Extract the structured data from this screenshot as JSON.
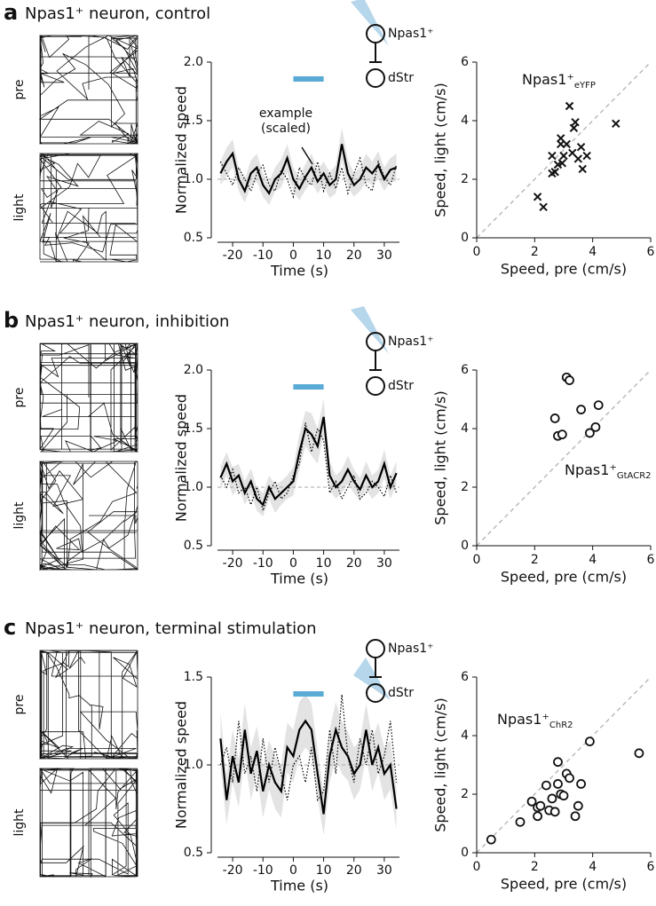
{
  "panels": [
    {
      "letter": "a",
      "title": "Npas1⁺ neuron, control",
      "tracks": [
        "pre",
        "light"
      ],
      "circuit": [
        "Npas1⁺",
        "dStr"
      ]
    },
    {
      "letter": "b",
      "title": "Npas1⁺ neuron, inhibition",
      "tracks": [
        "pre",
        "light"
      ],
      "circuit": [
        "Npas1⁺",
        "dStr"
      ]
    },
    {
      "letter": "c",
      "title": "Npas1⁺ neuron, terminal stimulation",
      "tracks": [
        "pre",
        "light"
      ],
      "circuit": [
        "Npas1⁺",
        "dStr"
      ]
    }
  ],
  "chart_data": [
    {
      "type": "line",
      "xlabel": "Time (s)",
      "ylabel": "Normalized speed",
      "x": [
        -24,
        -22,
        -20,
        -18,
        -16,
        -14,
        -12,
        -10,
        -8,
        -6,
        -4,
        -2,
        0,
        2,
        4,
        6,
        8,
        10,
        12,
        14,
        16,
        18,
        20,
        22,
        24,
        26,
        28,
        30,
        32,
        34
      ],
      "series": [
        {
          "color": "#000000",
          "style": "solid",
          "values": [
            1.05,
            1.15,
            1.22,
            1.0,
            0.9,
            1.05,
            1.1,
            0.95,
            0.88,
            1.0,
            1.05,
            1.18,
            1.0,
            0.92,
            1.02,
            1.1,
            0.98,
            1.05,
            0.95,
            1.0,
            1.3,
            1.05,
            0.95,
            1.0,
            1.1,
            1.05,
            1.12,
            1.0,
            1.08,
            1.1
          ],
          "errors": [
            0.1,
            0.12,
            0.12,
            0.1,
            0.1,
            0.11,
            0.12,
            0.1,
            0.1,
            0.1,
            0.12,
            0.12,
            0.1,
            0.1,
            0.11,
            0.12,
            0.1,
            0.1,
            0.11,
            0.12,
            0.14,
            0.12,
            0.1,
            0.1,
            0.12,
            0.1,
            0.12,
            0.1,
            0.1,
            0.12
          ]
        },
        {
          "color": "#000000",
          "style": "dotted",
          "values": [
            1.15,
            1.05,
            0.95,
            1.1,
            1.0,
            0.9,
            1.05,
            1.12,
            0.95,
            0.9,
            1.08,
            1.0,
            0.85,
            1.1,
            1.0,
            0.95,
            1.15,
            0.9,
            1.05,
            0.92,
            1.1,
            0.88,
            1.05,
            1.18,
            0.95,
            0.9,
            1.15,
            1.02,
            0.95,
            1.12
          ]
        }
      ],
      "band_color": "#e3e3e3",
      "reference_line": 1,
      "highlight": {
        "range": [
          0,
          10
        ],
        "color": "#5aaad6"
      },
      "annotation": [
        "example",
        "(scaled)"
      ],
      "xlim": [
        -25,
        35
      ],
      "ylim": [
        0.5,
        2.0
      ],
      "xticks": [
        -20,
        -10,
        0,
        10,
        20,
        30
      ],
      "yticks": [
        0.5,
        {
          "value": 1,
          "label": "1.0"
        },
        1.5,
        {
          "value": 2,
          "label": "2.0"
        }
      ]
    },
    {
      "type": "scatter",
      "xlabel": "Speed, pre (cm/s)",
      "ylabel": "Speed, light (cm/s)",
      "marker": "x",
      "identity_line": true,
      "annotation": {
        "text": "Npas1⁺",
        "subscript": "eYFP"
      },
      "x": [
        2.1,
        2.3,
        2.6,
        2.6,
        2.7,
        2.8,
        2.9,
        2.9,
        3.0,
        2.95,
        3.1,
        3.2,
        3.3,
        3.35,
        3.4,
        3.5,
        3.6,
        3.65,
        3.8,
        4.8
      ],
      "values": [
        1.4,
        1.05,
        2.2,
        2.8,
        2.25,
        2.5,
        3.2,
        3.4,
        2.8,
        2.55,
        3.2,
        4.5,
        2.9,
        3.75,
        3.95,
        2.7,
        3.1,
        2.35,
        2.8,
        3.9
      ],
      "xlim": [
        0,
        6
      ],
      "ylim": [
        0,
        6
      ],
      "xticks": [
        0,
        2,
        4,
        6
      ],
      "yticks": [
        0,
        2,
        4,
        6
      ]
    },
    {
      "type": "line",
      "xlabel": "Time (s)",
      "ylabel": "Normalized speed",
      "x": [
        -24,
        -22,
        -20,
        -18,
        -16,
        -14,
        -12,
        -10,
        -8,
        -6,
        -4,
        -2,
        0,
        2,
        4,
        6,
        8,
        10,
        12,
        14,
        16,
        18,
        20,
        22,
        24,
        26,
        28,
        30,
        32,
        34
      ],
      "series": [
        {
          "color": "#000000",
          "style": "solid",
          "values": [
            1.08,
            1.2,
            1.05,
            1.1,
            0.95,
            1.05,
            0.9,
            0.85,
            1.0,
            0.9,
            0.95,
            1.0,
            1.05,
            1.3,
            1.5,
            1.45,
            1.35,
            1.6,
            1.1,
            1.0,
            1.05,
            1.15,
            1.05,
            0.98,
            1.1,
            1.0,
            1.05,
            1.2,
            1.0,
            1.12
          ],
          "errors": [
            0.1,
            0.1,
            0.12,
            0.1,
            0.1,
            0.11,
            0.1,
            0.1,
            0.1,
            0.12,
            0.1,
            0.1,
            0.12,
            0.15,
            0.15,
            0.18,
            0.15,
            0.15,
            0.12,
            0.1,
            0.1,
            0.12,
            0.1,
            0.1,
            0.12,
            0.1,
            0.1,
            0.12,
            0.1,
            0.1
          ]
        },
        {
          "color": "#000000",
          "style": "dotted",
          "values": [
            1.1,
            1.0,
            1.15,
            0.95,
            1.0,
            0.85,
            1.0,
            0.8,
            0.95,
            1.05,
            0.9,
            0.95,
            1.1,
            1.2,
            1.55,
            1.3,
            1.5,
            1.4,
            0.95,
            1.05,
            0.9,
            1.0,
            1.1,
            0.9,
            0.95,
            1.05,
            1.0,
            0.92,
            1.1,
            0.95
          ]
        }
      ],
      "band_color": "#e3e3e3",
      "reference_line": 1,
      "highlight": {
        "range": [
          0,
          10
        ],
        "color": "#5aaad6"
      },
      "xlim": [
        -25,
        35
      ],
      "ylim": [
        0.5,
        2.0
      ],
      "xticks": [
        -20,
        -10,
        0,
        10,
        20,
        30
      ],
      "yticks": [
        0.5,
        {
          "value": 1,
          "label": "1.0"
        },
        1.5,
        {
          "value": 2,
          "label": "2.0"
        }
      ]
    },
    {
      "type": "scatter",
      "xlabel": "Speed, pre (cm/s)",
      "ylabel": "Speed, light (cm/s)",
      "marker": "circle",
      "identity_line": true,
      "annotation": {
        "text": "Npas1⁺",
        "subscript": "GtACR2"
      },
      "x": [
        2.7,
        2.8,
        2.95,
        3.1,
        3.2,
        3.6,
        3.9,
        4.1,
        4.2
      ],
      "values": [
        4.35,
        3.75,
        3.8,
        5.75,
        5.65,
        4.65,
        3.85,
        4.05,
        4.8
      ],
      "xlim": [
        0,
        6
      ],
      "ylim": [
        0,
        6
      ],
      "xticks": [
        0,
        2,
        4,
        6
      ],
      "yticks": [
        0,
        2,
        4,
        6
      ]
    },
    {
      "type": "line",
      "xlabel": "Time (s)",
      "ylabel": "Normalized speed",
      "x": [
        -24,
        -22,
        -20,
        -18,
        -16,
        -14,
        -12,
        -10,
        -8,
        -6,
        -4,
        -2,
        0,
        2,
        4,
        6,
        8,
        10,
        12,
        14,
        16,
        18,
        20,
        22,
        24,
        26,
        28,
        30,
        32,
        34
      ],
      "series": [
        {
          "color": "#000000",
          "style": "solid",
          "values": [
            1.15,
            0.8,
            1.05,
            0.9,
            1.2,
            0.95,
            1.08,
            0.85,
            1.0,
            0.9,
            0.85,
            1.1,
            1.05,
            1.2,
            1.25,
            1.2,
            0.95,
            0.72,
            1.05,
            1.2,
            1.1,
            1.05,
            0.95,
            1.0,
            1.2,
            1.0,
            1.1,
            0.95,
            1.0,
            0.75
          ],
          "errors": [
            0.15,
            0.14,
            0.15,
            0.14,
            0.15,
            0.15,
            0.14,
            0.15,
            0.14,
            0.15,
            0.15,
            0.14,
            0.15,
            0.16,
            0.15,
            0.15,
            0.14,
            0.12,
            0.15,
            0.16,
            0.15,
            0.14,
            0.15,
            0.14,
            0.15,
            0.15,
            0.14,
            0.15,
            0.14,
            0.12
          ]
        },
        {
          "color": "#000000",
          "style": "dotted",
          "values": [
            1.0,
            1.1,
            0.9,
            1.25,
            0.95,
            1.05,
            0.85,
            1.15,
            0.9,
            1.1,
            0.95,
            0.8,
            1.0,
            1.05,
            0.9,
            1.1,
            0.8,
            0.85,
            1.2,
            0.95,
            1.4,
            1.05,
            0.9,
            1.15,
            1.0,
            1.2,
            0.95,
            1.05,
            1.25,
            0.9
          ]
        }
      ],
      "band_color": "#e3e3e3",
      "reference_line": 1,
      "highlight": {
        "range": [
          0,
          10
        ],
        "color": "#5aaad6"
      },
      "xlim": [
        -25,
        35
      ],
      "ylim": [
        0.5,
        1.5
      ],
      "xticks": [
        -20,
        -10,
        0,
        10,
        20,
        30
      ],
      "yticks": [
        0.5,
        {
          "value": 1,
          "label": "1.0"
        },
        1.5
      ]
    },
    {
      "type": "scatter",
      "xlabel": "Speed, pre (cm/s)",
      "ylabel": "Speed, light (cm/s)",
      "marker": "circle",
      "identity_line": true,
      "annotation": {
        "text": "Npas1⁺",
        "subscript": "ChR2"
      },
      "x": [
        0.5,
        1.5,
        1.9,
        2.1,
        2.1,
        2.2,
        2.4,
        2.5,
        2.6,
        2.7,
        2.8,
        2.8,
        2.9,
        3.0,
        3.1,
        3.2,
        3.4,
        3.5,
        3.6,
        3.9,
        5.6
      ],
      "values": [
        0.45,
        1.05,
        1.75,
        1.25,
        1.55,
        1.6,
        2.3,
        1.45,
        1.85,
        1.4,
        2.35,
        3.1,
        2.0,
        1.95,
        2.7,
        2.55,
        1.25,
        1.6,
        2.35,
        3.8,
        3.4
      ],
      "xlim": [
        0,
        6
      ],
      "ylim": [
        0,
        6
      ],
      "xticks": [
        0,
        2,
        4,
        6
      ],
      "yticks": [
        0,
        2,
        4,
        6
      ]
    }
  ]
}
